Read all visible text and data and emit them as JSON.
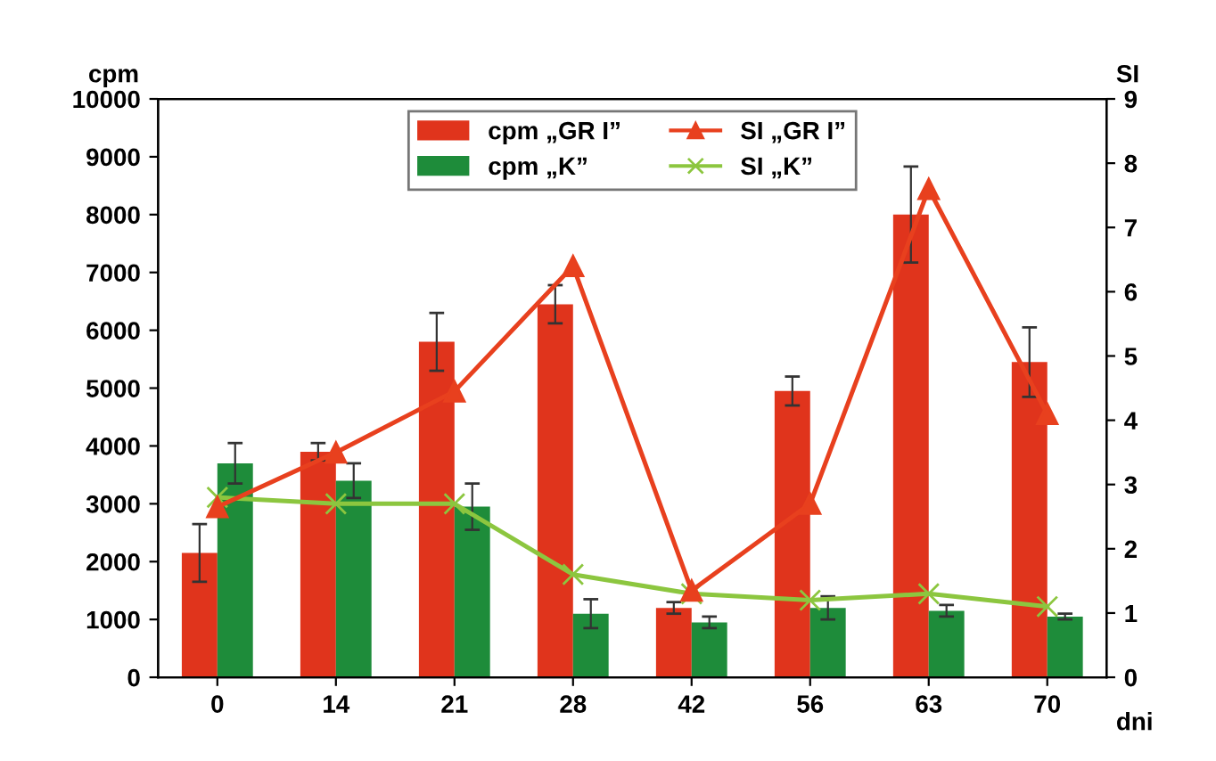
{
  "chart_data": {
    "type": "bar",
    "xlabel": "dni",
    "ylabel": "cpm",
    "y2label": "SI",
    "categories": [
      "0",
      "14",
      "21",
      "28",
      "42",
      "56",
      "63",
      "70"
    ],
    "series": [
      {
        "name": "cpm „GR I”",
        "color": "#e0341c",
        "values": [
          2150,
          3900,
          5800,
          6450,
          1200,
          4950,
          8000,
          5450
        ],
        "errors": [
          500,
          150,
          500,
          330,
          100,
          250,
          830,
          600
        ]
      },
      {
        "name": "cpm „K”",
        "color": "#1e8c3a",
        "values": [
          3700,
          3400,
          2950,
          1100,
          950,
          1200,
          1150,
          1050
        ],
        "errors": [
          350,
          300,
          400,
          250,
          100,
          200,
          100,
          50
        ]
      },
      {
        "name": "SI „GR I”",
        "type": "line",
        "axis": "y2",
        "marker": "triangle",
        "color": "#e8401e",
        "values": [
          2.65,
          3.5,
          4.45,
          6.4,
          1.35,
          2.7,
          7.6,
          4.1
        ]
      },
      {
        "name": "SI „K”",
        "type": "line",
        "axis": "y2",
        "marker": "cross",
        "color": "#8cc63f",
        "values": [
          2.8,
          2.7,
          2.7,
          1.6,
          1.3,
          1.2,
          1.3,
          1.1
        ]
      }
    ],
    "ylim": [
      0,
      10000
    ],
    "yticks": [
      0,
      1000,
      2000,
      3000,
      4000,
      5000,
      6000,
      7000,
      8000,
      9000,
      10000
    ],
    "y2lim": [
      0,
      9
    ],
    "y2ticks": [
      0,
      1,
      2,
      3,
      4,
      5,
      6,
      7,
      8,
      9
    ],
    "grid": false,
    "legend": "top"
  }
}
